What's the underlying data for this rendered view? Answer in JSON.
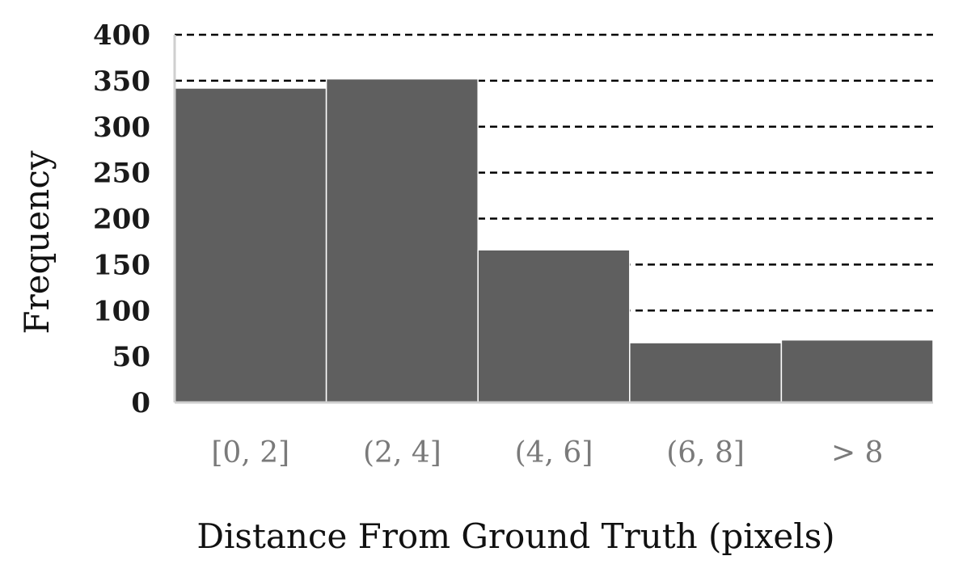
{
  "chart_data": {
    "type": "bar",
    "title": "",
    "xlabel": "Distance From Ground Truth (pixels)",
    "ylabel": "Frequency",
    "categories": [
      "[0, 2]",
      "(2, 4]",
      "(4, 6]",
      "(6, 8]",
      "> 8"
    ],
    "values": [
      342,
      352,
      166,
      65,
      68
    ],
    "ylim": [
      0,
      400
    ],
    "yticks": [
      0,
      50,
      100,
      150,
      200,
      250,
      300,
      350,
      400
    ],
    "grid": true,
    "grid_style": "dashed",
    "legend": "none",
    "colors": {
      "bar": "#5f5f5f",
      "bar_edge": "#ffffff",
      "grid": "#000000",
      "axis": "#cfcfcf",
      "ytick_text": "#1a1a1a",
      "xtick_text": "#7a7a7a",
      "axis_title": "#111111"
    }
  }
}
